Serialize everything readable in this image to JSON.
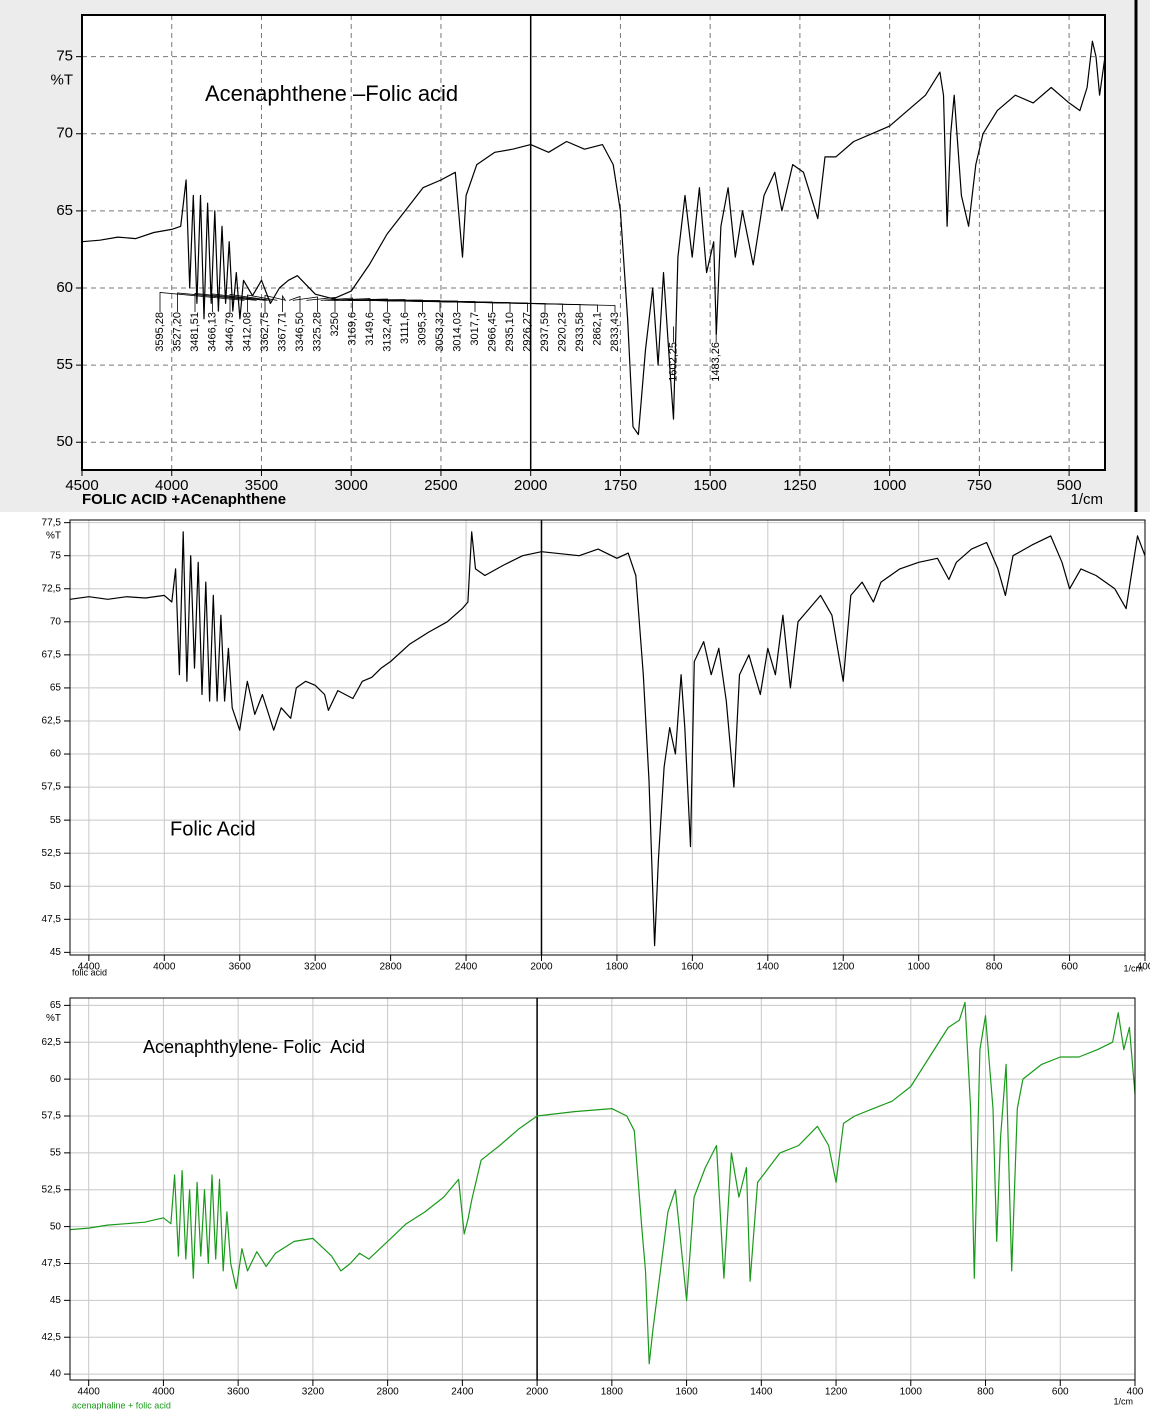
{
  "chart_data": [
    {
      "type": "line",
      "title": "Acenaphthene –Folic acid",
      "x_label": "FOLIC ACID +ACenaphthene",
      "x_unit": "1/cm",
      "y_label": "%T",
      "color": "#000000",
      "grid": true,
      "grid_dashed": true,
      "xlim": [
        4500,
        400
      ],
      "ylim": [
        48.2,
        77.7
      ],
      "xticks": [
        4500,
        4000,
        3500,
        3000,
        2500,
        2000,
        1750,
        1500,
        1250,
        1000,
        750,
        500
      ],
      "yticks": [
        50,
        55,
        60,
        65,
        70,
        75
      ],
      "x": [
        4500,
        4400,
        4300,
        4200,
        4100,
        4000,
        3950,
        3920,
        3900,
        3880,
        3860,
        3840,
        3820,
        3800,
        3780,
        3760,
        3740,
        3720,
        3700,
        3680,
        3660,
        3640,
        3620,
        3600,
        3550,
        3500,
        3450,
        3400,
        3350,
        3300,
        3250,
        3200,
        3100,
        3000,
        2900,
        2800,
        2700,
        2600,
        2500,
        2420,
        2380,
        2360,
        2300,
        2200,
        2100,
        2000,
        1950,
        1900,
        1850,
        1800,
        1770,
        1750,
        1730,
        1715,
        1700,
        1680,
        1660,
        1645,
        1630,
        1610,
        1602,
        1590,
        1570,
        1550,
        1530,
        1510,
        1490,
        1483,
        1470,
        1450,
        1430,
        1410,
        1380,
        1350,
        1320,
        1300,
        1270,
        1240,
        1200,
        1180,
        1150,
        1100,
        1050,
        1000,
        950,
        900,
        860,
        850,
        840,
        830,
        820,
        800,
        780,
        760,
        740,
        700,
        650,
        600,
        550,
        500,
        470,
        450,
        435,
        425,
        415,
        400
      ],
      "values": [
        63,
        63.1,
        63.3,
        63.2,
        63.6,
        63.8,
        64,
        67,
        60,
        66,
        59,
        66,
        58,
        65.5,
        59,
        65,
        58.5,
        64,
        59,
        63,
        58.5,
        61,
        58,
        60.5,
        59.5,
        60.5,
        59,
        60,
        60.5,
        60.8,
        60.2,
        59.6,
        59.3,
        59.8,
        61.5,
        63.5,
        65,
        66.5,
        67,
        67.5,
        62,
        66,
        68,
        68.8,
        69,
        69.3,
        68.8,
        69.5,
        69,
        69.3,
        68,
        65,
        58,
        51,
        50.5,
        56,
        60,
        55,
        61,
        54,
        51.5,
        62,
        66,
        62,
        66.5,
        61,
        63,
        57,
        64,
        66.5,
        62,
        65,
        61.5,
        66,
        67.5,
        65,
        68,
        67.5,
        64.5,
        68.5,
        68.5,
        69.5,
        70,
        70.5,
        71.5,
        72.5,
        74,
        72.5,
        64,
        70,
        72.5,
        66,
        64,
        68,
        70,
        71.5,
        72.5,
        72,
        73,
        72,
        71.5,
        73,
        76,
        75,
        72.5,
        75
      ],
      "peak_labels": [
        {
          "value": 3595.28,
          "label": "3595,28"
        },
        {
          "value": 3527.2,
          "label": "3527,20"
        },
        {
          "value": 3481.51,
          "label": "3481,51"
        },
        {
          "value": 3466.13,
          "label": "3466,13"
        },
        {
          "value": 3446.79,
          "label": "3446,79"
        },
        {
          "value": 3412.08,
          "label": "3412,08"
        },
        {
          "value": 3362.75,
          "label": "3362,75"
        },
        {
          "value": 3367.71,
          "label": "3367,71"
        },
        {
          "value": 3346.5,
          "label": "3346,50"
        },
        {
          "value": 3325.28,
          "label": "3325,28"
        },
        3250,
        {
          "value": 3169.6,
          "label": "3169,6"
        },
        {
          "value": 3149.6,
          "label": "3149,6"
        },
        {
          "value": 3132.4,
          "label": "3132,40"
        },
        {
          "value": 3111.6,
          "label": "3111,6"
        },
        {
          "value": 3095.3,
          "label": "3095,3"
        },
        {
          "value": 3053.32,
          "label": "3053,32"
        },
        {
          "value": 3014.03,
          "label": "3014,03"
        },
        {
          "value": 3017.7,
          "label": "3017,7"
        },
        {
          "value": 2966.45,
          "label": "2966,45"
        },
        {
          "value": 2935.1,
          "label": "2935,10"
        },
        {
          "value": 2926.27,
          "label": "2926,27"
        },
        {
          "value": 2937.59,
          "label": "2937,59"
        },
        {
          "value": 2920.23,
          "label": "2920,23"
        },
        {
          "value": 2933.58,
          "label": "2933,58"
        },
        {
          "value": 2862.1,
          "label": "2862,1"
        },
        {
          "value": 2833.43,
          "label": "2833,43"
        },
        {
          "value": 1602.25,
          "label": "1602,25"
        },
        {
          "value": 1483.26,
          "label": "1483,26"
        }
      ]
    },
    {
      "type": "line",
      "title": "Folic Acid",
      "x_label": "folic acid",
      "x_unit": "1/cm",
      "y_label": "%T",
      "color": "#000000",
      "grid": true,
      "xlim": [
        4500,
        400
      ],
      "ylim": [
        44.8,
        77.7
      ],
      "xticks": [
        4400,
        4000,
        3600,
        3200,
        2800,
        2400,
        2000,
        1800,
        1600,
        1400,
        1200,
        1000,
        800,
        600,
        400
      ],
      "yticks": [
        45,
        {
          "value": 47.5,
          "label": "47,5"
        },
        50,
        {
          "value": 52.5,
          "label": "52,5"
        },
        55,
        {
          "value": 57.5,
          "label": "57,5"
        },
        60,
        {
          "value": 62.5,
          "label": "62,5"
        },
        65,
        {
          "value": 67.5,
          "label": "67,5"
        },
        70,
        {
          "value": 72.5,
          "label": "72,5"
        },
        75,
        {
          "value": 77.5,
          "label": "77,5"
        }
      ],
      "x": [
        4500,
        4400,
        4300,
        4200,
        4100,
        4000,
        3960,
        3940,
        3920,
        3900,
        3880,
        3860,
        3840,
        3820,
        3800,
        3780,
        3760,
        3740,
        3720,
        3700,
        3680,
        3660,
        3640,
        3600,
        3560,
        3520,
        3480,
        3420,
        3380,
        3330,
        3300,
        3250,
        3200,
        3150,
        3130,
        3080,
        3000,
        2950,
        2900,
        2850,
        2800,
        2700,
        2600,
        2500,
        2420,
        2390,
        2370,
        2350,
        2300,
        2200,
        2100,
        2000,
        1900,
        1850,
        1800,
        1770,
        1750,
        1730,
        1715,
        1700,
        1690,
        1675,
        1660,
        1645,
        1630,
        1620,
        1605,
        1595,
        1570,
        1550,
        1530,
        1510,
        1490,
        1475,
        1450,
        1420,
        1400,
        1380,
        1360,
        1340,
        1320,
        1290,
        1260,
        1230,
        1200,
        1180,
        1150,
        1120,
        1100,
        1050,
        1000,
        950,
        920,
        900,
        860,
        820,
        790,
        770,
        750,
        700,
        650,
        620,
        600,
        570,
        530,
        480,
        450,
        420,
        400
      ],
      "values": [
        71.7,
        71.9,
        71.7,
        71.9,
        71.8,
        72,
        71.5,
        74,
        66,
        76.8,
        65.5,
        75,
        66.5,
        74.5,
        64.5,
        73,
        64,
        72,
        64,
        70.5,
        64,
        68,
        63.5,
        61.8,
        65.5,
        63,
        64.5,
        61.8,
        63.5,
        62.7,
        65,
        65.5,
        65.2,
        64.5,
        63.3,
        64.8,
        64.2,
        65.5,
        65.8,
        66.5,
        67,
        68.3,
        69.2,
        70,
        71,
        71.5,
        76.8,
        74,
        73.5,
        74.3,
        75,
        75.3,
        75,
        75.5,
        74.8,
        75.2,
        73.5,
        66,
        58,
        45.5,
        52,
        59,
        62,
        60,
        66,
        62,
        53,
        67,
        68.5,
        66,
        68,
        64,
        57.5,
        66,
        67.5,
        64.5,
        68,
        66,
        70.5,
        65,
        70,
        71,
        72,
        70.5,
        65.5,
        72,
        73,
        71.5,
        73,
        74,
        74.5,
        74.8,
        73.2,
        74.5,
        75.5,
        76,
        74,
        72,
        75,
        75.8,
        76.5,
        74.5,
        72.5,
        74,
        73.5,
        72.5,
        71,
        76.5,
        75
      ]
    },
    {
      "type": "line",
      "title": "Acenaphthylene- Folic  Acid",
      "x_label": "acenaphaline + folic acid",
      "x_unit": "1/cm",
      "y_label": "%T",
      "color": "#1a9a1a",
      "grid": true,
      "xlim": [
        4500,
        400
      ],
      "ylim": [
        39.6,
        65.5
      ],
      "xticks": [
        4400,
        4000,
        3600,
        3200,
        2800,
        2400,
        2000,
        1800,
        1600,
        1400,
        1200,
        1000,
        800,
        600,
        400
      ],
      "yticks": [
        40,
        {
          "value": 42.5,
          "label": "42,5"
        },
        45,
        {
          "value": 47.5,
          "label": "47,5"
        },
        50,
        {
          "value": 52.5,
          "label": "52,5"
        },
        55,
        {
          "value": 57.5,
          "label": "57,5"
        },
        60,
        {
          "value": 62.5,
          "label": "62,5"
        },
        65
      ],
      "x": [
        4500,
        4400,
        4300,
        4200,
        4100,
        4000,
        3960,
        3940,
        3920,
        3900,
        3880,
        3860,
        3840,
        3820,
        3800,
        3780,
        3760,
        3740,
        3720,
        3700,
        3680,
        3660,
        3640,
        3610,
        3580,
        3550,
        3500,
        3450,
        3400,
        3300,
        3200,
        3100,
        3050,
        3000,
        2950,
        2900,
        2800,
        2700,
        2600,
        2500,
        2420,
        2390,
        2370,
        2350,
        2300,
        2200,
        2100,
        2000,
        1900,
        1800,
        1760,
        1740,
        1720,
        1710,
        1700,
        1690,
        1670,
        1650,
        1630,
        1600,
        1580,
        1550,
        1520,
        1500,
        1480,
        1460,
        1440,
        1430,
        1410,
        1380,
        1350,
        1300,
        1250,
        1220,
        1200,
        1180,
        1150,
        1100,
        1050,
        1000,
        950,
        900,
        870,
        855,
        840,
        830,
        815,
        800,
        780,
        770,
        760,
        745,
        730,
        715,
        700,
        650,
        600,
        550,
        500,
        460,
        445,
        430,
        415,
        400
      ],
      "values": [
        49.8,
        49.9,
        50.1,
        50.2,
        50.3,
        50.6,
        50.2,
        53.5,
        48,
        53.8,
        47.8,
        52.5,
        46.5,
        53,
        48,
        52.5,
        47.5,
        53.5,
        47.8,
        53.2,
        47,
        51,
        47.5,
        45.8,
        48.5,
        47,
        48.3,
        47.3,
        48.2,
        49,
        49.2,
        48,
        47,
        47.5,
        48.2,
        47.8,
        49,
        50.2,
        51,
        52,
        53.2,
        49.5,
        50.5,
        51.8,
        54.5,
        55.5,
        56.6,
        57.5,
        57.8,
        58,
        57.5,
        56.5,
        50,
        47,
        40.7,
        43,
        47,
        51,
        52.5,
        45,
        52,
        54,
        55.5,
        46.5,
        55,
        52,
        54,
        46.3,
        53,
        54,
        55,
        55.5,
        56.8,
        55.5,
        53,
        57,
        57.5,
        58,
        58.5,
        59.5,
        61.5,
        63.5,
        64,
        65.2,
        58,
        46.5,
        62,
        64.3,
        58,
        49,
        56,
        61,
        47,
        58,
        60,
        61,
        61.5,
        61.5,
        62,
        62.5,
        64.5,
        62,
        63.5,
        59
      ]
    }
  ]
}
